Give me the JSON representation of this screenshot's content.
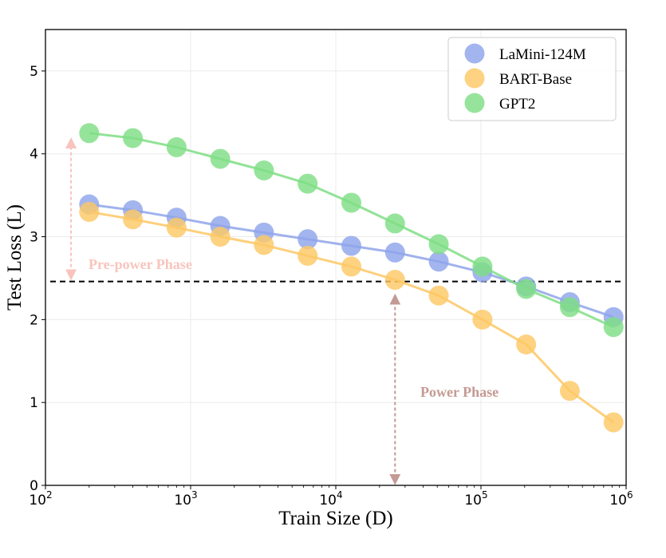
{
  "chart_data": {
    "type": "line",
    "xlabel": "Train Size (D)",
    "ylabel": "Test Loss (L)",
    "xscale": "log",
    "xlim": [
      100,
      1000000
    ],
    "ylim": [
      0,
      5.5
    ],
    "grid": true,
    "legend_position": "top-right",
    "x_ticks": [
      {
        "value": 100,
        "base": "10",
        "exp": "2"
      },
      {
        "value": 1000,
        "base": "10",
        "exp": "3"
      },
      {
        "value": 10000,
        "base": "10",
        "exp": "4"
      },
      {
        "value": 100000,
        "base": "10",
        "exp": "5"
      },
      {
        "value": 1000000,
        "base": "10",
        "exp": "6"
      }
    ],
    "y_ticks": [
      0,
      1,
      2,
      3,
      4,
      5
    ],
    "x": [
      200,
      400,
      800,
      1600,
      3200,
      6400,
      12800,
      25600,
      51200,
      102400,
      204800,
      409600,
      819200
    ],
    "series": [
      {
        "name": "LaMini-124M",
        "color": "#8fa5ea",
        "values": [
          3.39,
          3.32,
          3.23,
          3.13,
          3.05,
          2.97,
          2.89,
          2.81,
          2.7,
          2.57,
          2.4,
          2.21,
          2.03
        ]
      },
      {
        "name": "BART-Base",
        "color": "#fdc865",
        "values": [
          3.3,
          3.21,
          3.11,
          3.0,
          2.9,
          2.77,
          2.64,
          2.48,
          2.29,
          2.0,
          1.7,
          1.14,
          0.76
        ]
      },
      {
        "name": "GPT2",
        "color": "#7fde85",
        "values": [
          4.25,
          4.19,
          4.08,
          3.94,
          3.8,
          3.64,
          3.41,
          3.16,
          2.91,
          2.64,
          2.37,
          2.15,
          1.91
        ]
      }
    ],
    "threshold_y": 2.46,
    "annotations": {
      "pre_power": {
        "text": "Pre-power Phase",
        "color": "#f8c4bd",
        "x": 150,
        "y_from": 2.46,
        "y_to": 4.25
      },
      "power": {
        "text": "Power Phase",
        "color": "#c49a94",
        "x": 25600,
        "y_from": 2.48,
        "y_to": 0
      }
    }
  }
}
